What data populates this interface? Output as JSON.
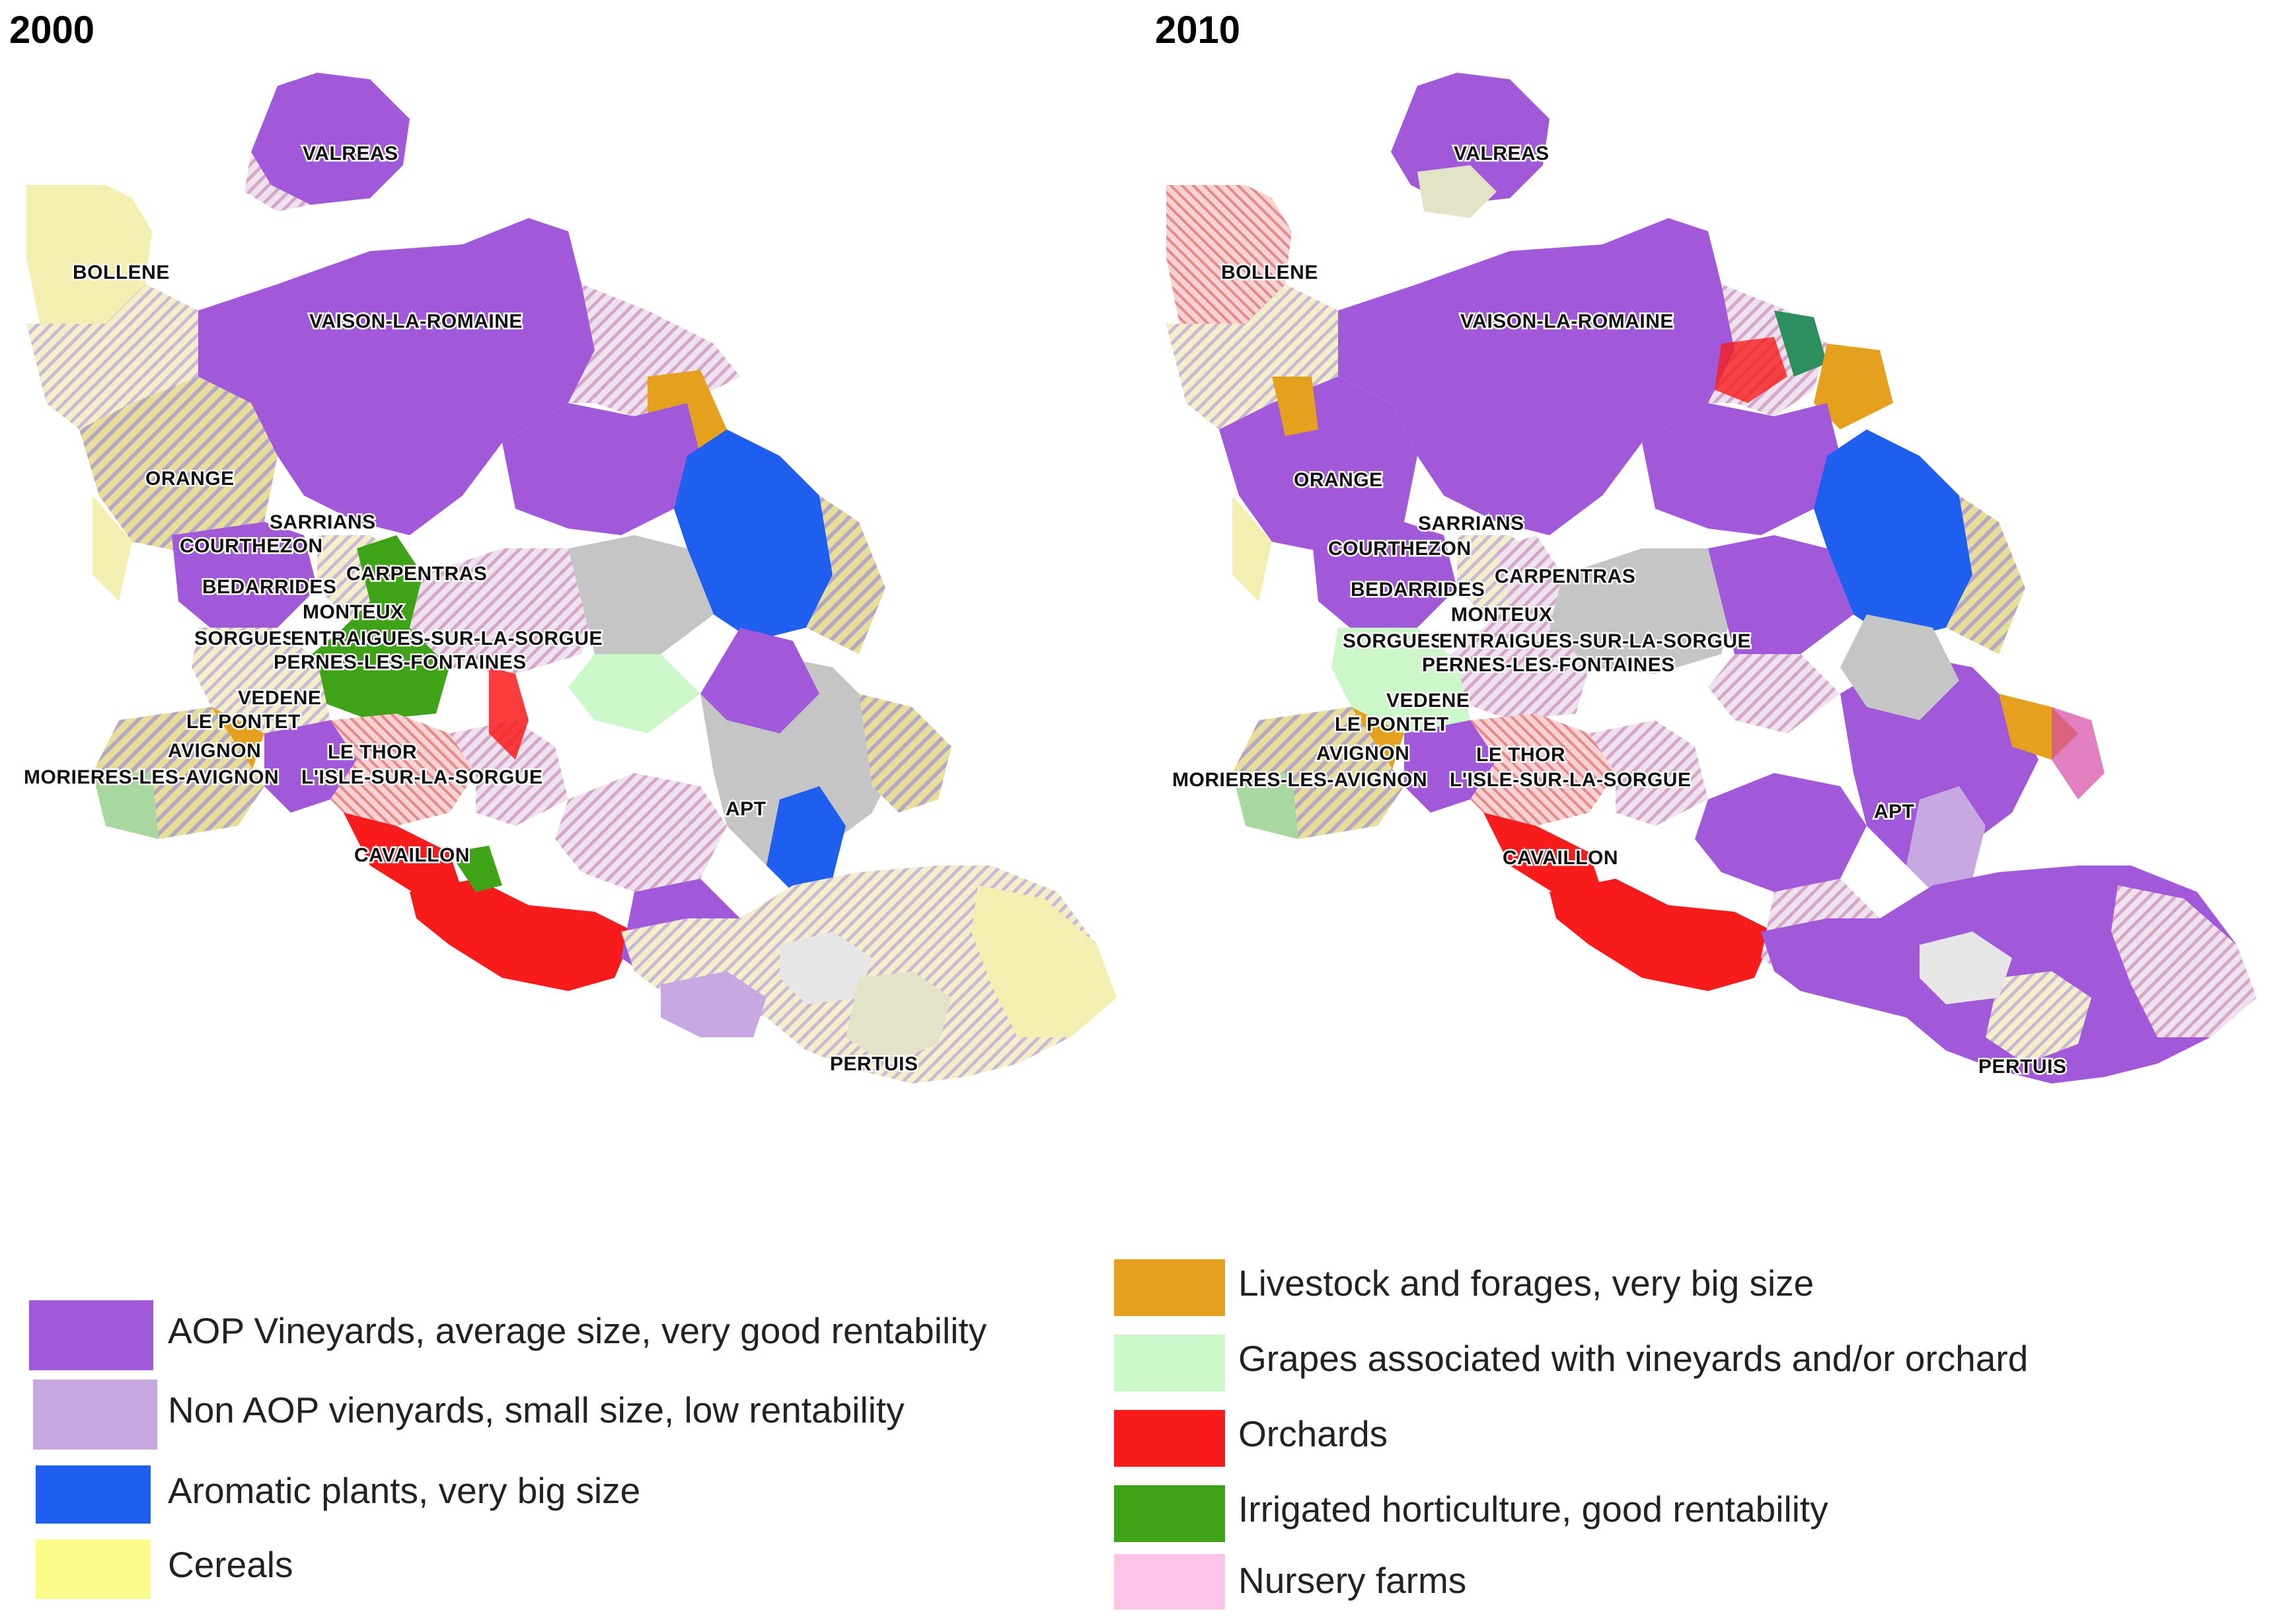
{
  "maps": [
    {
      "year": "2000",
      "labels": [
        "VALREAS",
        "BOLLENE",
        "VAISON-LA-ROMAINE",
        "ORANGE",
        "SARRIANS",
        "COURTHEZON",
        "CARPENTRAS",
        "BEDARRIDES",
        "MONTEUX",
        "SORGUES",
        "ENTRAIGUES-SUR-LA-SORGUE",
        "PERNES-LES-FONTAINES",
        "VEDENE",
        "LE PONTET",
        "AVIGNON",
        "LE THOR",
        "MORIERES-LES-AVIGNON",
        "L'ISLE-SUR-LA-SORGUE",
        "APT",
        "CAVAILLON",
        "PERTUIS"
      ]
    },
    {
      "year": "2010",
      "labels": [
        "VALREAS",
        "BOLLENE",
        "VAISON-LA-ROMAINE",
        "ORANGE",
        "SARRIANS",
        "COURTHEZON",
        "BEDARRIDES",
        "CARPENTRAS",
        "MONTEUX",
        "SORGUES",
        "ENTRAIGUES-SUR-LA-SORGUE",
        "PERNES-LES-FONTAINES",
        "VEDENE",
        "LE PONTET",
        "AVIGNON",
        "LE THOR",
        "MORIERES-LES-AVIGNON",
        "L'ISLE-SUR-LA-SORGUE",
        "APT",
        "CAVAILLON",
        "PERTUIS"
      ]
    }
  ],
  "legend": [
    {
      "label": "AOP Vineyards, average size, very good rentability",
      "color": "#a259d9"
    },
    {
      "label": "Non AOP vienyards, small size, low rentability",
      "color": "#c8a8e0"
    },
    {
      "label": "Aromatic plants, very big size",
      "color": "#1f5ff0"
    },
    {
      "label": "Cereals",
      "color": "#fbfb8a"
    },
    {
      "label": "Livestock and forages, very big size",
      "color": "#e5a11e"
    },
    {
      "label": "Grapes associated with vineyards and/or orchard",
      "color": "#ccf7c8"
    },
    {
      "label": "Orchards",
      "color": "#f81b1b"
    },
    {
      "label": "Irrigated horticulture, good rentability",
      "color": "#3fa318"
    },
    {
      "label": "Nursery farms",
      "color": "#fdc4ea"
    }
  ],
  "colors": {
    "shade_light": "#e6e6e6",
    "shade_gray": "#c5c5c5",
    "hatch_base": "#e3d7e8"
  }
}
